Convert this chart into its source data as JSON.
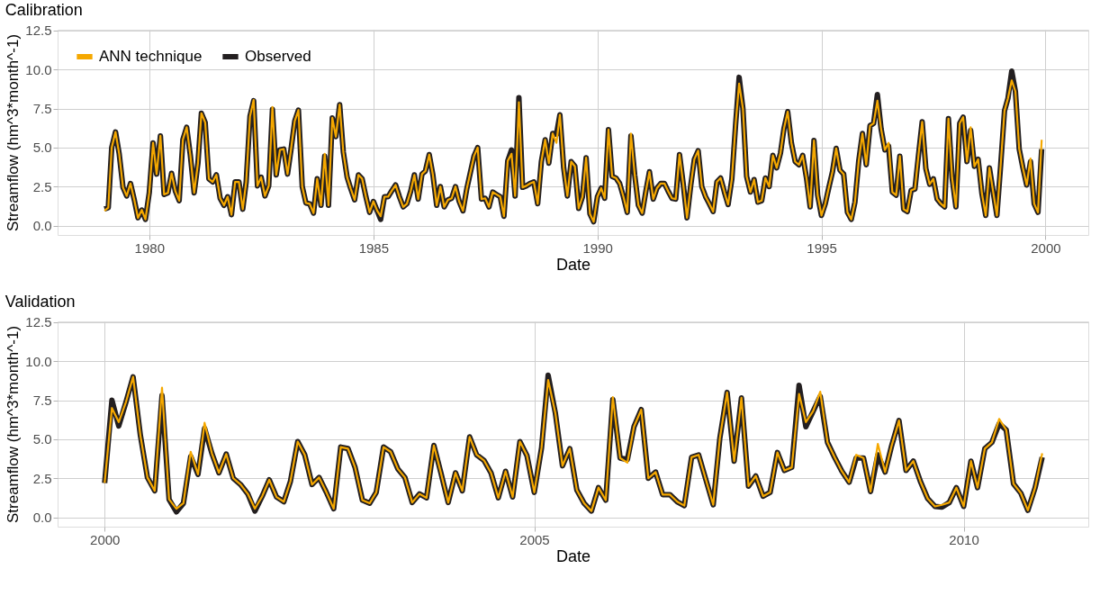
{
  "chart_data": [
    {
      "type": "line",
      "title": "Calibration",
      "xlabel": "Date",
      "ylabel": "Streamflow (hm^3*month^-1)",
      "grid": true,
      "legend": "top left",
      "xlim": [
        "1977-12-15",
        "2000-12-15"
      ],
      "xticks": [
        "1980",
        "1985",
        "1990",
        "1995",
        "2000"
      ],
      "ylim": [
        -0.6,
        12.55
      ],
      "yticks": [
        {
          "value": 0,
          "label": "0.0"
        },
        2.5,
        {
          "value": 5,
          "label": "5.0"
        },
        7.5,
        {
          "value": 10,
          "label": "10.0"
        },
        12.5
      ],
      "x": [
        "1979-01",
        "1979-02",
        "1979-03",
        "1979-04",
        "1979-05",
        "1979-06",
        "1979-07",
        "1979-08",
        "1979-09",
        "1979-10",
        "1979-11",
        "1979-12",
        "1980-01",
        "1980-02",
        "1980-03",
        "1980-04",
        "1980-05",
        "1980-06",
        "1980-07",
        "1980-08",
        "1980-09",
        "1980-10",
        "1980-11",
        "1980-12",
        "1981-01",
        "1981-02",
        "1981-03",
        "1981-04",
        "1981-05",
        "1981-06",
        "1981-07",
        "1981-08",
        "1981-09",
        "1981-10",
        "1981-11",
        "1981-12",
        "1982-01",
        "1982-02",
        "1982-03",
        "1982-04",
        "1982-05",
        "1982-06",
        "1982-07",
        "1982-08",
        "1982-09",
        "1982-10",
        "1982-11",
        "1982-12",
        "1983-01",
        "1983-02",
        "1983-03",
        "1983-04",
        "1983-05",
        "1983-06",
        "1983-07",
        "1983-08",
        "1983-09",
        "1983-10",
        "1983-11",
        "1983-12",
        "1984-01",
        "1984-02",
        "1984-03",
        "1984-04",
        "1984-05",
        "1984-06",
        "1984-07",
        "1984-08",
        "1984-09",
        "1984-10",
        "1984-11",
        "1984-12",
        "1985-01",
        "1985-02",
        "1985-03",
        "1985-04",
        "1985-05",
        "1985-06",
        "1985-07",
        "1985-08",
        "1985-09",
        "1985-10",
        "1985-11",
        "1985-12",
        "1986-01",
        "1986-02",
        "1986-03",
        "1986-04",
        "1986-05",
        "1986-06",
        "1986-07",
        "1986-08",
        "1986-09",
        "1986-10",
        "1986-11",
        "1986-12",
        "1987-01",
        "1987-02",
        "1987-03",
        "1987-04",
        "1987-05",
        "1987-06",
        "1987-07",
        "1987-08",
        "1987-09",
        "1987-10",
        "1987-11",
        "1987-12",
        "1988-01",
        "1988-02",
        "1988-03",
        "1988-04",
        "1988-05",
        "1988-06",
        "1988-07",
        "1988-08",
        "1988-09",
        "1988-10",
        "1988-11",
        "1988-12",
        "1989-01",
        "1989-02",
        "1989-03",
        "1989-04",
        "1989-05",
        "1989-06",
        "1989-07",
        "1989-08",
        "1989-09",
        "1989-10",
        "1989-11",
        "1989-12",
        "1990-01",
        "1990-02",
        "1990-03",
        "1990-04",
        "1990-05",
        "1990-06",
        "1990-07",
        "1990-08",
        "1990-09",
        "1990-10",
        "1990-11",
        "1990-12",
        "1991-01",
        "1991-02",
        "1991-03",
        "1991-04",
        "1991-05",
        "1991-06",
        "1991-07",
        "1991-08",
        "1991-09",
        "1991-10",
        "1991-11",
        "1991-12",
        "1992-01",
        "1992-02",
        "1992-03",
        "1992-04",
        "1992-05",
        "1992-06",
        "1992-07",
        "1992-08",
        "1992-09",
        "1992-10",
        "1992-11",
        "1992-12",
        "1993-01",
        "1993-02",
        "1993-03",
        "1993-04",
        "1993-05",
        "1993-06",
        "1993-07",
        "1993-08",
        "1993-09",
        "1993-10",
        "1993-11",
        "1993-12",
        "1994-01",
        "1994-02",
        "1994-03",
        "1994-04",
        "1994-05",
        "1994-06",
        "1994-07",
        "1994-08",
        "1994-09",
        "1994-10",
        "1994-11",
        "1994-12",
        "1995-01",
        "1995-02",
        "1995-03",
        "1995-04",
        "1995-05",
        "1995-06",
        "1995-07",
        "1995-08",
        "1995-09",
        "1995-10",
        "1995-11",
        "1995-12",
        "1996-01",
        "1996-02",
        "1996-03",
        "1996-04",
        "1996-05",
        "1996-06",
        "1996-07",
        "1996-08",
        "1996-09",
        "1996-10",
        "1996-11",
        "1996-12",
        "1997-01",
        "1997-02",
        "1997-03",
        "1997-04",
        "1997-05",
        "1997-06",
        "1997-07",
        "1997-08",
        "1997-09",
        "1997-10",
        "1997-11",
        "1997-12",
        "1998-01",
        "1998-02",
        "1998-03",
        "1998-04",
        "1998-05",
        "1998-06",
        "1998-07",
        "1998-08",
        "1998-09",
        "1998-10",
        "1998-11",
        "1998-12",
        "1999-01",
        "1999-02",
        "1999-03",
        "1999-04",
        "1999-05",
        "1999-06",
        "1999-07",
        "1999-08",
        "1999-09",
        "1999-10",
        "1999-11",
        "1999-12"
      ],
      "series": [
        {
          "name": "ANN technique",
          "color": "#f5a800",
          "values": [
            0.95,
            1.15,
            5.0,
            6.0,
            4.6,
            2.45,
            1.9,
            2.7,
            1.65,
            0.5,
            1.0,
            0.4,
            2.1,
            5.3,
            3.3,
            5.75,
            2.0,
            2.1,
            3.35,
            2.2,
            1.6,
            5.5,
            6.3,
            4.5,
            2.1,
            4.0,
            7.2,
            6.6,
            3.0,
            2.8,
            3.25,
            1.75,
            1.3,
            1.85,
            0.7,
            2.8,
            2.8,
            1.05,
            2.8,
            7.0,
            8.05,
            2.55,
            3.1,
            1.9,
            2.55,
            7.6,
            3.25,
            4.85,
            4.9,
            3.3,
            4.85,
            6.7,
            7.4,
            2.5,
            1.45,
            1.4,
            0.8,
            3.0,
            1.3,
            4.6,
            1.3,
            6.9,
            5.7,
            7.75,
            4.7,
            3.1,
            2.35,
            1.65,
            3.25,
            3.0,
            1.85,
            0.85,
            1.55,
            0.95,
            0.6,
            1.85,
            1.85,
            2.25,
            2.6,
            1.85,
            1.2,
            1.4,
            2.2,
            3.25,
            1.7,
            3.3,
            3.5,
            4.55,
            3.25,
            1.3,
            2.5,
            1.2,
            1.65,
            1.75,
            2.5,
            1.55,
            0.95,
            2.35,
            3.35,
            4.45,
            5.0,
            1.7,
            1.75,
            1.2,
            2.15,
            2.0,
            1.85,
            0.6,
            4.15,
            4.6,
            1.9,
            7.9,
            2.45,
            2.55,
            2.7,
            2.8,
            1.4,
            4.1,
            5.5,
            4.0,
            5.9,
            5.3,
            7.1,
            3.7,
            1.9,
            4.1,
            3.8,
            1.1,
            1.85,
            4.35,
            0.75,
            0.25,
            1.85,
            2.4,
            1.75,
            6.15,
            3.15,
            3.05,
            2.7,
            1.85,
            0.85,
            5.9,
            3.25,
            1.3,
            0.8,
            2.25,
            3.45,
            1.7,
            2.4,
            2.7,
            2.7,
            2.2,
            1.75,
            1.7,
            4.55,
            2.7,
            0.5,
            2.6,
            4.25,
            4.8,
            2.5,
            1.85,
            1.4,
            0.9,
            2.8,
            3.05,
            2.15,
            1.35,
            3.0,
            6.55,
            9.1,
            7.5,
            3.15,
            2.15,
            2.95,
            1.5,
            1.6,
            3.05,
            2.5,
            4.5,
            3.7,
            4.65,
            6.2,
            7.3,
            5.3,
            4.1,
            3.9,
            4.5,
            3.05,
            1.2,
            5.45,
            1.95,
            0.65,
            1.4,
            2.4,
            3.45,
            4.95,
            3.55,
            3.3,
            0.85,
            0.4,
            1.5,
            4.15,
            5.9,
            3.9,
            6.4,
            6.55,
            8.0,
            6.2,
            4.85,
            5.3,
            2.15,
            1.95,
            4.45,
            1.05,
            0.9,
            2.25,
            2.35,
            4.45,
            6.65,
            3.65,
            2.65,
            3.0,
            1.7,
            1.4,
            1.2,
            6.85,
            3.05,
            1.2,
            6.55,
            6.95,
            4.1,
            6.3,
            3.8,
            4.25,
            2.05,
            0.65,
            3.7,
            2.15,
            0.65,
            3.9,
            7.35,
            8.15,
            9.3,
            8.6,
            4.9,
            3.7,
            2.6,
            4.3,
            1.4,
            0.85,
            5.5
          ]
        },
        {
          "name": "Observed",
          "color": "#231f20",
          "values": [
            1.07,
            1.15,
            5.0,
            6.0,
            4.6,
            2.45,
            1.9,
            2.7,
            1.65,
            0.5,
            1.0,
            0.4,
            2.1,
            5.3,
            3.3,
            5.75,
            2.0,
            2.1,
            3.35,
            2.2,
            1.6,
            5.5,
            6.3,
            4.5,
            2.1,
            4.0,
            7.2,
            6.6,
            3.0,
            2.8,
            3.25,
            1.75,
            1.3,
            1.85,
            0.7,
            2.8,
            2.8,
            1.05,
            2.8,
            7.0,
            8.0,
            2.55,
            3.1,
            1.9,
            2.55,
            7.45,
            3.25,
            4.85,
            4.9,
            3.3,
            4.85,
            6.7,
            7.4,
            2.5,
            1.45,
            1.4,
            0.8,
            3.0,
            1.3,
            4.45,
            1.3,
            6.9,
            5.7,
            7.75,
            4.7,
            3.1,
            2.35,
            1.65,
            3.25,
            3.0,
            1.85,
            0.85,
            1.55,
            0.95,
            0.4,
            1.85,
            1.85,
            2.25,
            2.6,
            1.85,
            1.2,
            1.4,
            2.2,
            3.25,
            1.7,
            3.3,
            3.5,
            4.55,
            3.25,
            1.3,
            2.5,
            1.2,
            1.65,
            1.75,
            2.5,
            1.55,
            0.95,
            2.35,
            3.35,
            4.45,
            5.0,
            1.7,
            1.75,
            1.2,
            2.15,
            2.0,
            1.85,
            0.6,
            4.15,
            4.85,
            1.9,
            8.2,
            2.45,
            2.55,
            2.7,
            2.8,
            1.4,
            4.1,
            5.5,
            4.0,
            5.9,
            5.85,
            7.1,
            3.7,
            1.9,
            4.1,
            3.8,
            1.1,
            1.85,
            4.35,
            0.75,
            0.25,
            1.85,
            2.4,
            1.75,
            6.15,
            3.15,
            3.05,
            2.7,
            1.85,
            0.85,
            5.75,
            3.25,
            1.3,
            0.8,
            2.25,
            3.45,
            1.7,
            2.4,
            2.7,
            2.7,
            2.2,
            1.75,
            1.7,
            4.55,
            2.7,
            0.5,
            2.6,
            4.25,
            4.8,
            2.5,
            1.85,
            1.4,
            0.9,
            2.8,
            3.05,
            2.15,
            1.35,
            3.0,
            6.55,
            9.5,
            7.5,
            3.15,
            2.15,
            2.95,
            1.5,
            1.6,
            3.05,
            2.5,
            4.5,
            3.7,
            4.65,
            6.2,
            7.3,
            5.3,
            4.1,
            3.9,
            4.5,
            3.05,
            1.2,
            5.45,
            1.95,
            0.65,
            1.4,
            2.4,
            3.45,
            4.95,
            3.55,
            3.3,
            0.85,
            0.4,
            1.5,
            4.15,
            5.9,
            3.9,
            6.4,
            6.55,
            8.4,
            6.2,
            4.85,
            5.1,
            2.15,
            1.95,
            4.45,
            1.05,
            0.9,
            2.25,
            2.35,
            4.45,
            6.65,
            3.65,
            2.65,
            3.0,
            1.7,
            1.4,
            1.2,
            6.85,
            3.05,
            1.2,
            6.55,
            6.95,
            4.1,
            6.1,
            3.8,
            4.25,
            2.05,
            0.65,
            3.7,
            2.15,
            0.65,
            3.9,
            7.35,
            8.15,
            9.9,
            8.6,
            4.9,
            3.7,
            2.6,
            4.1,
            1.4,
            0.85,
            4.9
          ]
        }
      ]
    },
    {
      "type": "line",
      "title": "Validation",
      "xlabel": "Date",
      "ylabel": "Streamflow (hm^3*month^-1)",
      "grid": true,
      "legend": "top left",
      "xlim": [
        "1999-06-15",
        "2011-06-15"
      ],
      "xticks": [
        "2000",
        "2005",
        "2010"
      ],
      "ylim": [
        -0.6,
        12.55
      ],
      "yticks": [
        {
          "value": 0,
          "label": "0.0"
        },
        2.5,
        {
          "value": 5,
          "label": "5.0"
        },
        7.5,
        {
          "value": 10,
          "label": "10.0"
        },
        12.5
      ],
      "x": [
        "2000-01",
        "2000-02",
        "2000-03",
        "2000-04",
        "2000-05",
        "2000-06",
        "2000-07",
        "2000-08",
        "2000-09",
        "2000-10",
        "2000-11",
        "2000-12",
        "2001-01",
        "2001-02",
        "2001-03",
        "2001-04",
        "2001-05",
        "2001-06",
        "2001-07",
        "2001-08",
        "2001-09",
        "2001-10",
        "2001-11",
        "2001-12",
        "2002-01",
        "2002-02",
        "2002-03",
        "2002-04",
        "2002-05",
        "2002-06",
        "2002-07",
        "2002-08",
        "2002-09",
        "2002-10",
        "2002-11",
        "2002-12",
        "2003-01",
        "2003-02",
        "2003-03",
        "2003-04",
        "2003-05",
        "2003-06",
        "2003-07",
        "2003-08",
        "2003-09",
        "2003-10",
        "2003-11",
        "2003-12",
        "2004-01",
        "2004-02",
        "2004-03",
        "2004-04",
        "2004-05",
        "2004-06",
        "2004-07",
        "2004-08",
        "2004-09",
        "2004-10",
        "2004-11",
        "2004-12",
        "2005-01",
        "2005-02",
        "2005-03",
        "2005-04",
        "2005-05",
        "2005-06",
        "2005-07",
        "2005-08",
        "2005-09",
        "2005-10",
        "2005-11",
        "2005-12",
        "2006-01",
        "2006-02",
        "2006-03",
        "2006-04",
        "2006-05",
        "2006-06",
        "2006-07",
        "2006-08",
        "2006-09",
        "2006-10",
        "2006-11",
        "2006-12",
        "2007-01",
        "2007-02",
        "2007-03",
        "2007-04",
        "2007-05",
        "2007-06",
        "2007-07",
        "2007-08",
        "2007-09",
        "2007-10",
        "2007-11",
        "2007-12",
        "2008-01",
        "2008-02",
        "2008-03",
        "2008-04",
        "2008-05",
        "2008-06",
        "2008-07",
        "2008-08",
        "2008-09",
        "2008-10",
        "2008-11",
        "2008-12",
        "2009-01",
        "2009-02",
        "2009-03",
        "2009-04",
        "2009-05",
        "2009-06",
        "2009-07",
        "2009-08",
        "2009-09",
        "2009-10",
        "2009-11",
        "2009-12",
        "2010-01",
        "2010-02",
        "2010-03",
        "2010-04",
        "2010-05",
        "2010-06",
        "2010-07",
        "2010-08",
        "2010-09",
        "2010-10",
        "2010-11",
        "2010-12"
      ],
      "series": [
        {
          "name": "ANN technique",
          "color": "#f5a800",
          "values": [
            2.2,
            7.0,
            6.1,
            7.4,
            9.0,
            5.25,
            2.55,
            1.7,
            8.3,
            1.15,
            0.55,
            0.9,
            4.2,
            2.75,
            6.05,
            4.1,
            2.85,
            4.05,
            2.5,
            2.1,
            1.5,
            0.55,
            1.35,
            2.4,
            1.3,
            1.0,
            2.3,
            4.85,
            4.0,
            2.1,
            2.55,
            1.6,
            0.55,
            4.5,
            4.4,
            3.2,
            1.1,
            0.9,
            1.6,
            4.5,
            4.2,
            3.1,
            2.55,
            0.95,
            1.5,
            1.25,
            4.6,
            2.85,
            0.95,
            2.85,
            1.7,
            5.15,
            4.0,
            3.65,
            2.85,
            1.25,
            2.95,
            1.3,
            4.85,
            3.95,
            1.6,
            4.45,
            8.8,
            6.65,
            3.3,
            4.4,
            1.75,
            0.9,
            0.4,
            1.9,
            1.1,
            7.7,
            3.8,
            3.5,
            5.8,
            6.9,
            2.5,
            2.9,
            1.45,
            1.45,
            1.0,
            0.75,
            3.85,
            4.0,
            2.4,
            0.8,
            5.05,
            8.0,
            3.6,
            7.65,
            2.0,
            2.65,
            1.35,
            1.6,
            4.15,
            3.0,
            3.2,
            7.9,
            6.1,
            6.8,
            8.05,
            4.8,
            3.85,
            2.95,
            2.25,
            4.0,
            3.8,
            1.65,
            4.7,
            2.9,
            4.6,
            6.2,
            3.0,
            3.6,
            2.3,
            1.2,
            0.7,
            0.8,
            0.95,
            1.9,
            0.7,
            3.6,
            1.9,
            4.4,
            4.8,
            6.3,
            5.6,
            2.15,
            1.55,
            0.45,
            1.9,
            4.1
          ]
        },
        {
          "name": "Observed",
          "color": "#231f20",
          "values": [
            2.2,
            7.5,
            5.85,
            7.4,
            9.0,
            5.25,
            2.55,
            1.7,
            7.8,
            1.15,
            0.35,
            0.9,
            3.9,
            2.75,
            5.7,
            4.1,
            2.85,
            4.05,
            2.5,
            2.1,
            1.5,
            0.4,
            1.35,
            2.4,
            1.3,
            1.0,
            2.3,
            4.85,
            4.0,
            2.1,
            2.55,
            1.6,
            0.55,
            4.5,
            4.4,
            3.2,
            1.1,
            0.9,
            1.6,
            4.5,
            4.2,
            3.1,
            2.55,
            0.95,
            1.5,
            1.25,
            4.6,
            2.85,
            0.95,
            2.85,
            1.7,
            5.15,
            4.0,
            3.65,
            2.85,
            1.25,
            2.95,
            1.3,
            4.85,
            3.95,
            1.6,
            4.45,
            9.1,
            6.65,
            3.3,
            4.4,
            1.75,
            0.9,
            0.4,
            1.9,
            1.1,
            7.55,
            3.8,
            3.7,
            5.8,
            6.9,
            2.5,
            2.9,
            1.45,
            1.45,
            1.0,
            0.75,
            3.85,
            4.0,
            2.4,
            0.8,
            5.05,
            8.0,
            3.6,
            7.65,
            2.0,
            2.65,
            1.35,
            1.6,
            4.15,
            3.0,
            3.2,
            8.45,
            5.8,
            6.8,
            7.75,
            4.8,
            3.85,
            2.95,
            2.25,
            3.8,
            3.8,
            1.65,
            4.0,
            2.9,
            4.6,
            6.2,
            3.0,
            3.6,
            2.3,
            1.2,
            0.7,
            0.65,
            0.95,
            1.9,
            0.7,
            3.6,
            1.9,
            4.4,
            4.8,
            6.0,
            5.6,
            2.15,
            1.55,
            0.45,
            1.9,
            3.85
          ]
        }
      ]
    }
  ]
}
